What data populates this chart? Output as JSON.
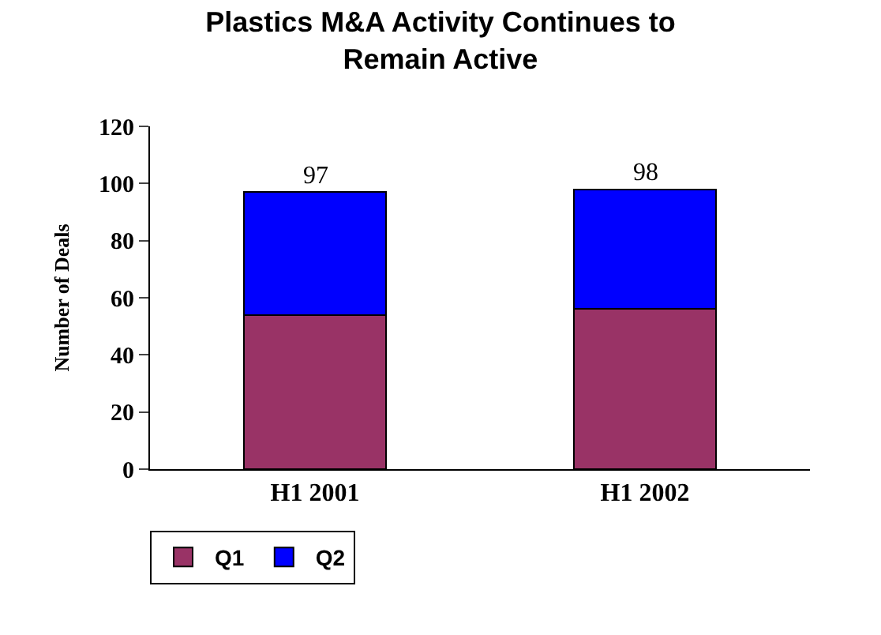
{
  "chart_data": {
    "type": "bar",
    "title": "Plastics M&A Activity Continues to Remain Active",
    "ylabel": "Number of Deals",
    "categories": [
      "H1 2001",
      "H1 2002"
    ],
    "series": [
      {
        "name": "Q1",
        "color": "#993366",
        "values": [
          54,
          56
        ]
      },
      {
        "name": "Q2",
        "color": "#0000ff",
        "values": [
          43,
          42
        ]
      }
    ],
    "stacked": true,
    "totals": [
      "97",
      "98"
    ],
    "ylim": [
      0,
      120
    ],
    "yticks": [
      0,
      20,
      40,
      60,
      80,
      100,
      120
    ],
    "legend": "bottom left"
  }
}
